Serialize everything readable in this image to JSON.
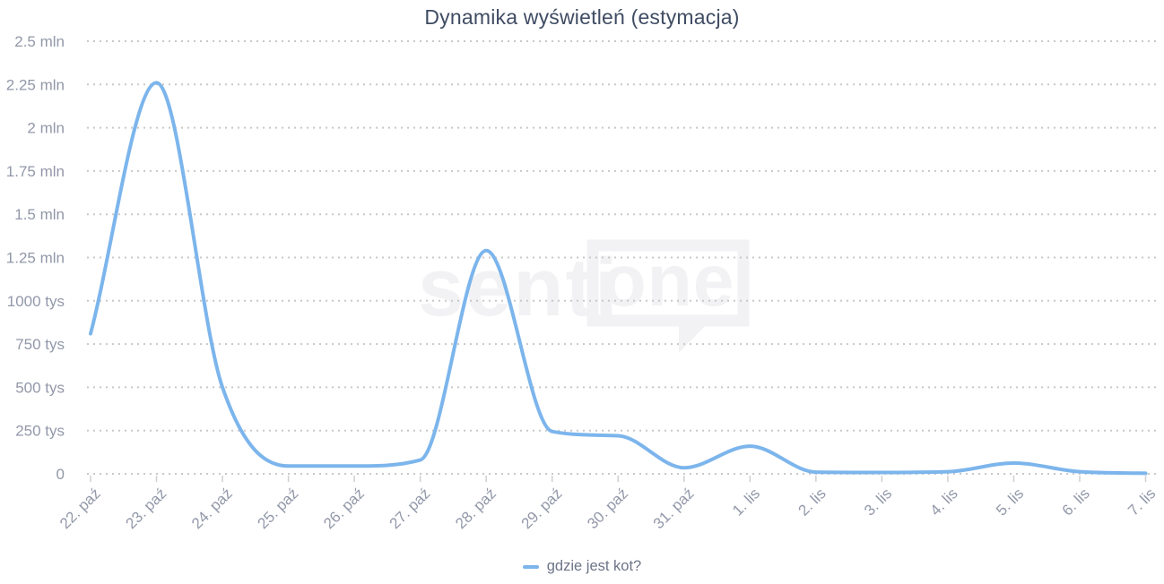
{
  "title": "Dynamika wyświetleń (estymacja)",
  "legend": {
    "series_label": "gdzie jest kot?"
  },
  "watermark": {
    "text_left": "senti",
    "text_bubble": "one"
  },
  "colors": {
    "line": "#7cb5ec",
    "title": "#3f4c63",
    "axis_labels": "#9298a9",
    "legend_text": "#6c7488",
    "gridline": "#c8c8c8",
    "tick": "#cfcfcf",
    "watermark": "#f2f2f4",
    "background": "#ffffff"
  },
  "chart_data": {
    "type": "line",
    "title": "Dynamika wyświetleń (estymacja)",
    "xlabel": "",
    "ylabel": "",
    "x": [
      "22. paź",
      "23. paź",
      "24. paź",
      "25. paź",
      "26. paź",
      "27. paź",
      "28. paź",
      "29. paź",
      "30. paź",
      "31. paź",
      "1. lis",
      "2. lis",
      "3. lis",
      "4. lis",
      "5. lis",
      "6. lis",
      "7. lis"
    ],
    "series": [
      {
        "name": "gdzie jest kot?",
        "values": [
          810000,
          2260000,
          500000,
          45000,
          45000,
          80000,
          1290000,
          245000,
          220000,
          35000,
          160000,
          10000,
          8000,
          12000,
          62000,
          12000,
          3000
        ]
      }
    ],
    "ylim": [
      0,
      2500000
    ],
    "y_tick_step": 250000,
    "y_tick_labels": [
      "0",
      "250 tys",
      "500 tys",
      "750 tys",
      "1000 tys",
      "1.25 mln",
      "1.5 mln",
      "1.75 mln",
      "2 mln",
      "2.25 mln",
      "2.5 mln"
    ],
    "grid": "dotted-horizontal",
    "legend_position": "bottom-center",
    "curve": "smooth-monotone",
    "x_label_rotation_deg": -45
  }
}
